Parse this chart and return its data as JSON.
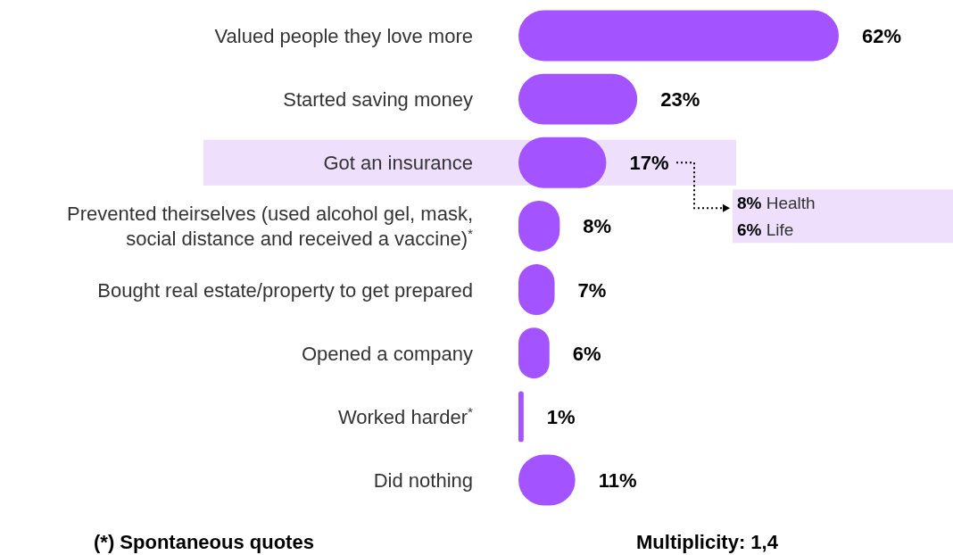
{
  "chart_data": {
    "type": "bar",
    "orientation": "horizontal",
    "categories": [
      "Valued people they love more",
      "Started saving money",
      "Got an insurance",
      "Prevented theirselves (used alcohol gel, mask, social distance and received a vaccine)$^{*}$",
      "Bought real estate/property to get prepared",
      "Opened a company",
      "Worked harder$^{*}$",
      "Did nothing"
    ],
    "values": [
      62,
      23,
      17,
      8,
      7,
      6,
      1,
      11
    ],
    "value_labels": [
      "62%",
      "23%",
      "17%",
      "8%",
      "7%",
      "6%",
      "1%",
      "11%"
    ],
    "color": "#a353ff",
    "bands": [
      {
        "axis": "y",
        "from": "Got an insurance",
        "to": "Got an insurance",
        "color": "#eee0fc"
      }
    ],
    "annotations": [
      "8% Health",
      "6% Life",
      "(*) Spontaneous quotes",
      "Multiplicity: 1,4"
    ]
  }
}
